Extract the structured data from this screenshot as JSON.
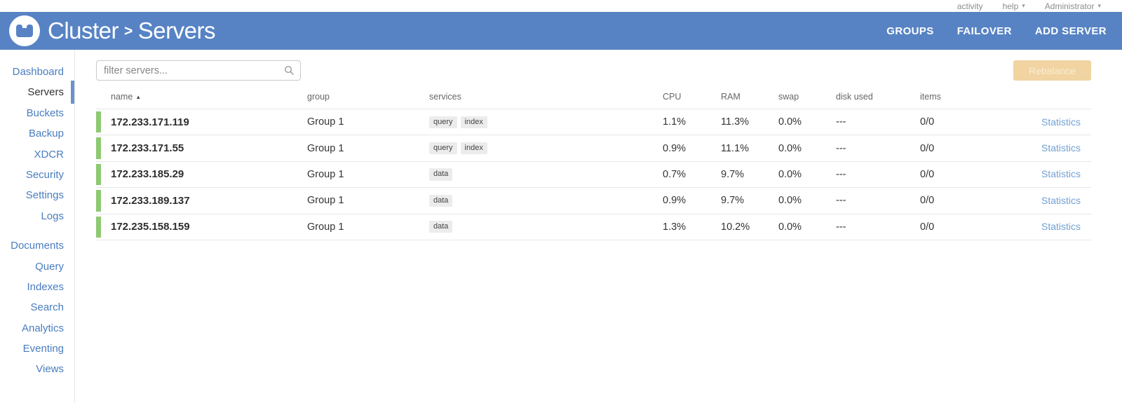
{
  "topbar": {
    "activity": "activity",
    "help": "help",
    "user": "Administrator"
  },
  "header": {
    "title_cluster": "Cluster",
    "title_separator": ">",
    "title_page": "Servers",
    "actions": [
      "GROUPS",
      "FAILOVER",
      "ADD SERVER"
    ]
  },
  "sidebar": {
    "active": "Servers",
    "groups": [
      [
        "Dashboard",
        "Servers",
        "Buckets",
        "Backup",
        "XDCR",
        "Security",
        "Settings",
        "Logs"
      ],
      [
        "Documents",
        "Query",
        "Indexes",
        "Search",
        "Analytics",
        "Eventing",
        "Views"
      ]
    ]
  },
  "toolbar": {
    "filter_placeholder": "filter servers...",
    "rebalance_label": "Rebalance"
  },
  "table": {
    "columns": [
      "name",
      "group",
      "services",
      "CPU",
      "RAM",
      "swap",
      "disk used",
      "items"
    ],
    "sort_column": "name",
    "sort_direction": "ascending",
    "stats_label": "Statistics",
    "rows": [
      {
        "name": "172.233.171.119",
        "group": "Group 1",
        "services": [
          "query",
          "index"
        ],
        "cpu": "1.1%",
        "ram": "11.3%",
        "swap": "0.0%",
        "disk_used": "---",
        "items": "0/0"
      },
      {
        "name": "172.233.171.55",
        "group": "Group 1",
        "services": [
          "query",
          "index"
        ],
        "cpu": "0.9%",
        "ram": "11.1%",
        "swap": "0.0%",
        "disk_used": "---",
        "items": "0/0"
      },
      {
        "name": "172.233.185.29",
        "group": "Group 1",
        "services": [
          "data"
        ],
        "cpu": "0.7%",
        "ram": "9.7%",
        "swap": "0.0%",
        "disk_used": "---",
        "items": "0/0"
      },
      {
        "name": "172.233.189.137",
        "group": "Group 1",
        "services": [
          "data"
        ],
        "cpu": "0.9%",
        "ram": "9.7%",
        "swap": "0.0%",
        "disk_used": "---",
        "items": "0/0"
      },
      {
        "name": "172.235.158.159",
        "group": "Group 1",
        "services": [
          "data"
        ],
        "cpu": "1.3%",
        "ram": "10.2%",
        "swap": "0.0%",
        "disk_used": "---",
        "items": "0/0"
      }
    ]
  },
  "colors": {
    "header_blue": "#5783c4",
    "sidebar_link": "#4a7dbf",
    "active_indicator": "#6a93cb",
    "node_healthy_green": "#8ec973",
    "rebalance_disabled_bg": "#f1d4a2",
    "statistics_link": "#72a1d4"
  }
}
